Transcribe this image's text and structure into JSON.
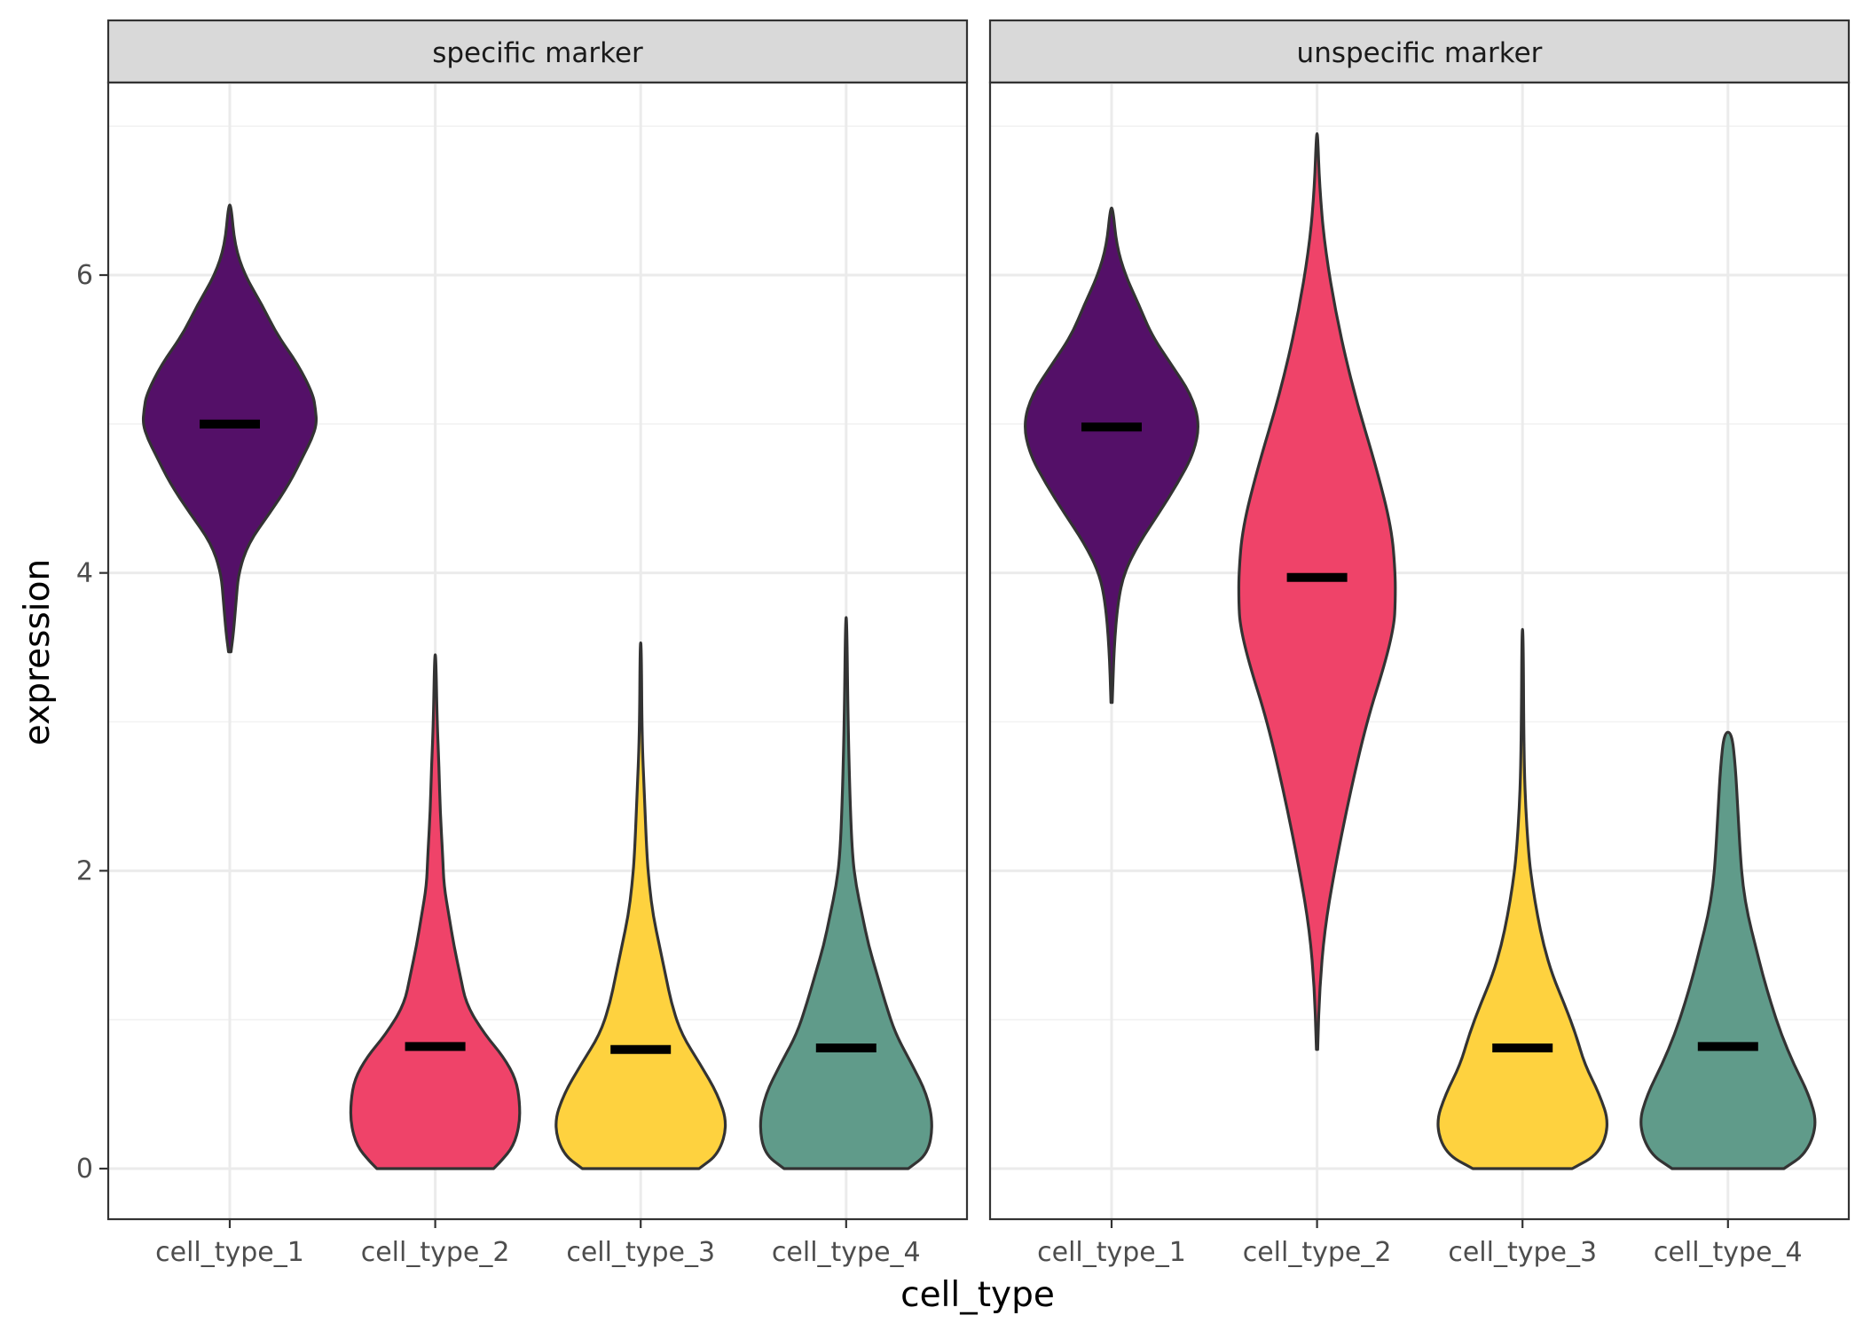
{
  "chart_data": {
    "type": "violin",
    "xlabel": "cell_type",
    "ylabel": "expression",
    "ylim": [
      -0.33,
      7.3
    ],
    "y_ticks": [
      0,
      2,
      4,
      6
    ],
    "grid": true,
    "categories": [
      "cell_type_1",
      "cell_type_2",
      "cell_type_3",
      "cell_type_4"
    ],
    "fill_colors": {
      "cell_type_1": "#541068",
      "cell_type_2": "#ef4369",
      "cell_type_3": "#fed23f",
      "cell_type_4": "#609b8a"
    },
    "panels": [
      {
        "title": "specific marker",
        "violins": [
          {
            "category": "cell_type_1",
            "median": 5.0,
            "profile": [
              [
                3.47,
                0.01
              ],
              [
                3.6,
                0.03
              ],
              [
                3.8,
                0.05
              ],
              [
                4.0,
                0.07
              ],
              [
                4.2,
                0.15
              ],
              [
                4.4,
                0.32
              ],
              [
                4.6,
                0.48
              ],
              [
                4.8,
                0.6
              ],
              [
                4.9,
                0.66
              ],
              [
                5.0,
                0.7
              ],
              [
                5.1,
                0.69
              ],
              [
                5.2,
                0.67
              ],
              [
                5.4,
                0.55
              ],
              [
                5.6,
                0.38
              ],
              [
                5.8,
                0.26
              ],
              [
                6.0,
                0.12
              ],
              [
                6.2,
                0.04
              ],
              [
                6.47,
                0.01
              ]
            ]
          },
          {
            "category": "cell_type_2",
            "median": 0.82,
            "profile": [
              [
                0.0,
                0.47
              ],
              [
                0.05,
                0.53
              ],
              [
                0.15,
                0.63
              ],
              [
                0.3,
                0.68
              ],
              [
                0.45,
                0.68
              ],
              [
                0.6,
                0.65
              ],
              [
                0.75,
                0.55
              ],
              [
                0.9,
                0.4
              ],
              [
                1.1,
                0.25
              ],
              [
                1.3,
                0.2
              ],
              [
                1.5,
                0.15
              ],
              [
                1.7,
                0.11
              ],
              [
                1.9,
                0.07
              ],
              [
                2.1,
                0.06
              ],
              [
                2.4,
                0.04
              ],
              [
                2.7,
                0.03
              ],
              [
                3.0,
                0.015
              ],
              [
                3.45,
                0.005
              ]
            ]
          },
          {
            "category": "cell_type_3",
            "median": 0.8,
            "profile": [
              [
                0.0,
                0.47
              ],
              [
                0.1,
                0.63
              ],
              [
                0.3,
                0.7
              ],
              [
                0.5,
                0.62
              ],
              [
                0.7,
                0.48
              ],
              [
                0.9,
                0.33
              ],
              [
                1.1,
                0.25
              ],
              [
                1.3,
                0.2
              ],
              [
                1.5,
                0.15
              ],
              [
                1.7,
                0.1
              ],
              [
                1.9,
                0.07
              ],
              [
                2.1,
                0.05
              ],
              [
                2.5,
                0.03
              ],
              [
                2.9,
                0.01
              ],
              [
                3.53,
                0.005
              ]
            ]
          },
          {
            "category": "cell_type_4",
            "median": 0.81,
            "profile": [
              [
                0.0,
                0.5
              ],
              [
                0.1,
                0.66
              ],
              [
                0.3,
                0.7
              ],
              [
                0.5,
                0.65
              ],
              [
                0.7,
                0.53
              ],
              [
                0.9,
                0.4
              ],
              [
                1.1,
                0.32
              ],
              [
                1.3,
                0.25
              ],
              [
                1.5,
                0.18
              ],
              [
                1.7,
                0.13
              ],
              [
                1.9,
                0.08
              ],
              [
                2.1,
                0.05
              ],
              [
                2.5,
                0.03
              ],
              [
                3.0,
                0.015
              ],
              [
                3.7,
                0.005
              ]
            ]
          }
        ]
      },
      {
        "title": "unspecific marker",
        "violins": [
          {
            "category": "cell_type_1",
            "median": 4.98,
            "profile": [
              [
                3.13,
                0.005
              ],
              [
                3.5,
                0.02
              ],
              [
                3.8,
                0.05
              ],
              [
                4.0,
                0.1
              ],
              [
                4.2,
                0.22
              ],
              [
                4.4,
                0.38
              ],
              [
                4.6,
                0.53
              ],
              [
                4.8,
                0.66
              ],
              [
                5.0,
                0.71
              ],
              [
                5.2,
                0.64
              ],
              [
                5.4,
                0.48
              ],
              [
                5.6,
                0.32
              ],
              [
                5.8,
                0.22
              ],
              [
                6.0,
                0.11
              ],
              [
                6.2,
                0.04
              ],
              [
                6.45,
                0.01
              ]
            ]
          },
          {
            "category": "cell_type_2",
            "median": 3.97,
            "profile": [
              [
                0.8,
                0.005
              ],
              [
                1.2,
                0.02
              ],
              [
                1.6,
                0.06
              ],
              [
                2.0,
                0.14
              ],
              [
                2.5,
                0.26
              ],
              [
                3.0,
                0.4
              ],
              [
                3.4,
                0.55
              ],
              [
                3.65,
                0.62
              ],
              [
                3.8,
                0.63
              ],
              [
                4.0,
                0.63
              ],
              [
                4.3,
                0.6
              ],
              [
                4.7,
                0.48
              ],
              [
                5.2,
                0.3
              ],
              [
                5.7,
                0.16
              ],
              [
                6.2,
                0.06
              ],
              [
                6.6,
                0.02
              ],
              [
                6.95,
                0.005
              ]
            ]
          },
          {
            "category": "cell_type_3",
            "median": 0.81,
            "profile": [
              [
                0.0,
                0.4
              ],
              [
                0.1,
                0.62
              ],
              [
                0.3,
                0.7
              ],
              [
                0.5,
                0.62
              ],
              [
                0.7,
                0.5
              ],
              [
                0.9,
                0.43
              ],
              [
                1.1,
                0.34
              ],
              [
                1.3,
                0.24
              ],
              [
                1.5,
                0.17
              ],
              [
                1.7,
                0.12
              ],
              [
                1.9,
                0.08
              ],
              [
                2.1,
                0.05
              ],
              [
                2.5,
                0.02
              ],
              [
                2.9,
                0.01
              ],
              [
                3.62,
                0.005
              ]
            ]
          },
          {
            "category": "cell_type_4",
            "median": 0.82,
            "profile": [
              [
                0.0,
                0.45
              ],
              [
                0.1,
                0.63
              ],
              [
                0.3,
                0.72
              ],
              [
                0.5,
                0.65
              ],
              [
                0.7,
                0.53
              ],
              [
                0.9,
                0.43
              ],
              [
                1.1,
                0.35
              ],
              [
                1.3,
                0.28
              ],
              [
                1.5,
                0.22
              ],
              [
                1.7,
                0.16
              ],
              [
                1.9,
                0.12
              ],
              [
                2.1,
                0.1
              ],
              [
                2.4,
                0.08
              ],
              [
                2.7,
                0.06
              ],
              [
                2.93,
                0.03
              ]
            ]
          }
        ]
      }
    ]
  }
}
